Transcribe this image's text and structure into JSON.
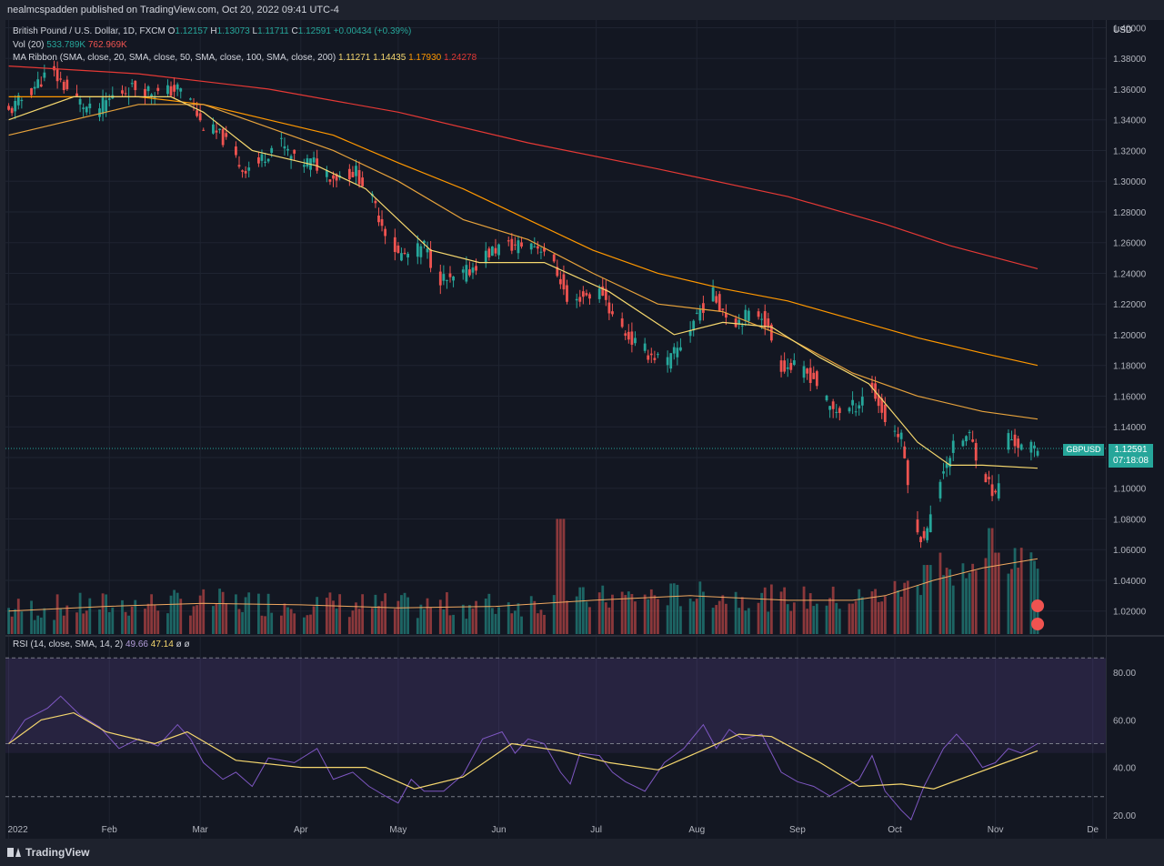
{
  "header": {
    "published": "nealmcspadden published on TradingView.com, Oct 20, 2022 09:41 UTC-4"
  },
  "legend": {
    "symbol": "British Pound / U.S. Dollar, 1D, FXCM",
    "o_label": "O",
    "o_value": "1.12157",
    "h_label": "H",
    "h_value": "1.13073",
    "l_label": "L",
    "l_value": "1.11711",
    "c_label": "C",
    "c_value": "1.12591",
    "change": "+0.00434 (+0.39%)",
    "vol_label": "Vol (20)",
    "vol_value": "533.789K",
    "vol_ma": "762.969K",
    "ma_label": "MA Ribbon (SMA, close, 20, SMA, close, 50, SMA, close, 100, SMA, close, 200)",
    "ma20": "1.11271",
    "ma50": "1.14435",
    "ma100": "1.17930",
    "ma200": "1.24278",
    "rsi_label": "RSI (14, close, SMA, 14, 2)",
    "rsi_value": "49.66",
    "rsi_ma": "47.14",
    "rsi_extra1": "ø",
    "rsi_extra2": "ø"
  },
  "price_axis": {
    "currency": "USD",
    "last_price": "1.12591",
    "countdown": "07:18:08",
    "symbol_tag": "GBPUSD"
  },
  "colors": {
    "up": "#26a69a",
    "down": "#ef5350",
    "ma20": "#f5d76e",
    "ma50": "#e6a23c",
    "ma100": "#ff9800",
    "ma200": "#e53935",
    "rsi": "#7e57c2",
    "rsi_ma": "#f5d76e",
    "background": "#131722"
  },
  "branding": {
    "logo_text": "TradingView"
  },
  "chart_data": {
    "type": "candlestick",
    "price_ticks": [
      "1.40000",
      "1.38000",
      "1.36000",
      "1.34000",
      "1.32000",
      "1.30000",
      "1.28000",
      "1.26000",
      "1.24000",
      "1.22000",
      "1.20000",
      "1.18000",
      "1.16000",
      "1.14000",
      "1.12000",
      "1.10000",
      "1.08000",
      "1.06000",
      "1.04000",
      "1.02000"
    ],
    "ylim": [
      1.005,
      1.405
    ],
    "rsi_ticks": [
      "80.00",
      "60.00",
      "40.00",
      "20.00"
    ],
    "rsi_ylim": [
      10,
      95
    ],
    "rsi_bands": [
      70,
      50,
      30
    ],
    "x_labels": [
      "2022",
      "Feb",
      "Mar",
      "Apr",
      "May",
      "Jun",
      "Jul",
      "Aug",
      "Sep",
      "Oct",
      "Nov",
      "De"
    ],
    "x_label_days": [
      0,
      31,
      59,
      90,
      120,
      151,
      181,
      212,
      243,
      273,
      304,
      334
    ],
    "x_range_days": [
      -1,
      338
    ],
    "price_path": [
      [
        0,
        1.345
      ],
      [
        8,
        1.362
      ],
      [
        13,
        1.372
      ],
      [
        20,
        1.355
      ],
      [
        26,
        1.344
      ],
      [
        33,
        1.357
      ],
      [
        40,
        1.362
      ],
      [
        46,
        1.357
      ],
      [
        52,
        1.36
      ],
      [
        56,
        1.354
      ],
      [
        59,
        1.338
      ],
      [
        66,
        1.328
      ],
      [
        72,
        1.308
      ],
      [
        77,
        1.312
      ],
      [
        83,
        1.327
      ],
      [
        88,
        1.313
      ],
      [
        94,
        1.312
      ],
      [
        100,
        1.303
      ],
      [
        107,
        1.306
      ],
      [
        111,
        1.292
      ],
      [
        116,
        1.268
      ],
      [
        120,
        1.252
      ],
      [
        124,
        1.252
      ],
      [
        128,
        1.258
      ],
      [
        132,
        1.238
      ],
      [
        136,
        1.234
      ],
      [
        142,
        1.242
      ],
      [
        147,
        1.252
      ],
      [
        151,
        1.257
      ],
      [
        156,
        1.258
      ],
      [
        160,
        1.26
      ],
      [
        165,
        1.256
      ],
      [
        170,
        1.236
      ],
      [
        173,
        1.214
      ],
      [
        176,
        1.225
      ],
      [
        183,
        1.228
      ],
      [
        186,
        1.212
      ],
      [
        192,
        1.196
      ],
      [
        197,
        1.188
      ],
      [
        203,
        1.182
      ],
      [
        208,
        1.196
      ],
      [
        212,
        1.214
      ],
      [
        217,
        1.226
      ],
      [
        223,
        1.208
      ],
      [
        227,
        1.212
      ],
      [
        232,
        1.214
      ],
      [
        238,
        1.18
      ],
      [
        243,
        1.178
      ],
      [
        248,
        1.172
      ],
      [
        253,
        1.152
      ],
      [
        258,
        1.15
      ],
      [
        262,
        1.156
      ],
      [
        265,
        1.17
      ],
      [
        270,
        1.145
      ],
      [
        275,
        1.132
      ],
      [
        280,
        1.068
      ],
      [
        283,
        1.072
      ],
      [
        288,
        1.114
      ],
      [
        292,
        1.13
      ],
      [
        296,
        1.134
      ],
      [
        300,
        1.112
      ],
      [
        304,
        1.094
      ],
      [
        308,
        1.134
      ],
      [
        312,
        1.126
      ],
      [
        317,
        1.126
      ]
    ],
    "ma20": [
      [
        0,
        1.34
      ],
      [
        20,
        1.355
      ],
      [
        50,
        1.355
      ],
      [
        60,
        1.345
      ],
      [
        75,
        1.32
      ],
      [
        95,
        1.31
      ],
      [
        110,
        1.295
      ],
      [
        130,
        1.255
      ],
      [
        145,
        1.247
      ],
      [
        165,
        1.247
      ],
      [
        185,
        1.228
      ],
      [
        205,
        1.2
      ],
      [
        220,
        1.208
      ],
      [
        235,
        1.205
      ],
      [
        250,
        1.185
      ],
      [
        265,
        1.168
      ],
      [
        280,
        1.13
      ],
      [
        290,
        1.115
      ],
      [
        300,
        1.115
      ],
      [
        317,
        1.113
      ]
    ],
    "ma50": [
      [
        0,
        1.33
      ],
      [
        40,
        1.35
      ],
      [
        60,
        1.35
      ],
      [
        80,
        1.335
      ],
      [
        100,
        1.32
      ],
      [
        120,
        1.3
      ],
      [
        140,
        1.275
      ],
      [
        160,
        1.262
      ],
      [
        180,
        1.24
      ],
      [
        200,
        1.22
      ],
      [
        220,
        1.215
      ],
      [
        240,
        1.198
      ],
      [
        260,
        1.175
      ],
      [
        280,
        1.16
      ],
      [
        300,
        1.15
      ],
      [
        317,
        1.145
      ]
    ],
    "ma100": [
      [
        0,
        1.355
      ],
      [
        40,
        1.355
      ],
      [
        60,
        1.35
      ],
      [
        80,
        1.34
      ],
      [
        100,
        1.33
      ],
      [
        120,
        1.312
      ],
      [
        140,
        1.295
      ],
      [
        160,
        1.275
      ],
      [
        180,
        1.255
      ],
      [
        200,
        1.24
      ],
      [
        220,
        1.23
      ],
      [
        240,
        1.222
      ],
      [
        260,
        1.21
      ],
      [
        280,
        1.198
      ],
      [
        300,
        1.188
      ],
      [
        317,
        1.18
      ]
    ],
    "ma200": [
      [
        0,
        1.375
      ],
      [
        40,
        1.37
      ],
      [
        80,
        1.36
      ],
      [
        120,
        1.345
      ],
      [
        160,
        1.325
      ],
      [
        200,
        1.308
      ],
      [
        240,
        1.29
      ],
      [
        270,
        1.272
      ],
      [
        290,
        1.258
      ],
      [
        317,
        1.243
      ]
    ],
    "volume_ma": [
      [
        0,
        1.02
      ],
      [
        30,
        1.023
      ],
      [
        60,
        1.025
      ],
      [
        90,
        1.024
      ],
      [
        120,
        1.022
      ],
      [
        150,
        1.023
      ],
      [
        180,
        1.027
      ],
      [
        210,
        1.03
      ],
      [
        240,
        1.027
      ],
      [
        260,
        1.027
      ],
      [
        270,
        1.03
      ],
      [
        285,
        1.04
      ],
      [
        300,
        1.048
      ],
      [
        317,
        1.054
      ]
    ],
    "volume_spikes": [
      [
        170,
        1.08
      ],
      [
        283,
        1.05
      ],
      [
        286,
        1.058
      ],
      [
        303,
        1.074
      ],
      [
        305,
        1.058
      ]
    ],
    "rsi": [
      [
        0,
        50
      ],
      [
        5,
        60
      ],
      [
        12,
        65
      ],
      [
        16,
        70
      ],
      [
        22,
        62
      ],
      [
        28,
        57
      ],
      [
        34,
        48
      ],
      [
        40,
        52
      ],
      [
        46,
        49
      ],
      [
        52,
        58
      ],
      [
        56,
        52
      ],
      [
        60,
        42
      ],
      [
        66,
        35
      ],
      [
        70,
        38
      ],
      [
        75,
        32
      ],
      [
        80,
        44
      ],
      [
        88,
        42
      ],
      [
        95,
        48
      ],
      [
        100,
        35
      ],
      [
        106,
        38
      ],
      [
        111,
        32
      ],
      [
        116,
        28
      ],
      [
        120,
        25
      ],
      [
        124,
        35
      ],
      [
        128,
        30
      ],
      [
        134,
        30
      ],
      [
        140,
        37
      ],
      [
        146,
        52
      ],
      [
        152,
        55
      ],
      [
        156,
        46
      ],
      [
        160,
        52
      ],
      [
        165,
        50
      ],
      [
        170,
        38
      ],
      [
        173,
        33
      ],
      [
        176,
        46
      ],
      [
        182,
        45
      ],
      [
        186,
        38
      ],
      [
        190,
        34
      ],
      [
        196,
        30
      ],
      [
        202,
        42
      ],
      [
        208,
        48
      ],
      [
        214,
        58
      ],
      [
        218,
        48
      ],
      [
        222,
        56
      ],
      [
        226,
        52
      ],
      [
        232,
        54
      ],
      [
        238,
        38
      ],
      [
        243,
        34
      ],
      [
        248,
        32
      ],
      [
        253,
        28
      ],
      [
        258,
        32
      ],
      [
        262,
        35
      ],
      [
        266,
        45
      ],
      [
        270,
        30
      ],
      [
        275,
        22
      ],
      [
        278,
        18
      ],
      [
        282,
        32
      ],
      [
        288,
        48
      ],
      [
        292,
        54
      ],
      [
        296,
        48
      ],
      [
        300,
        40
      ],
      [
        304,
        42
      ],
      [
        308,
        48
      ],
      [
        312,
        46
      ],
      [
        317,
        50
      ]
    ],
    "rsi_ma": [
      [
        0,
        50
      ],
      [
        10,
        60
      ],
      [
        20,
        63
      ],
      [
        30,
        55
      ],
      [
        45,
        50
      ],
      [
        55,
        55
      ],
      [
        70,
        43
      ],
      [
        90,
        40
      ],
      [
        110,
        40
      ],
      [
        125,
        31
      ],
      [
        140,
        36
      ],
      [
        155,
        50
      ],
      [
        170,
        47
      ],
      [
        185,
        42
      ],
      [
        200,
        39
      ],
      [
        215,
        48
      ],
      [
        225,
        54
      ],
      [
        235,
        53
      ],
      [
        250,
        42
      ],
      [
        262,
        32
      ],
      [
        275,
        33
      ],
      [
        285,
        31
      ],
      [
        295,
        36
      ],
      [
        305,
        41
      ],
      [
        317,
        47
      ]
    ]
  }
}
